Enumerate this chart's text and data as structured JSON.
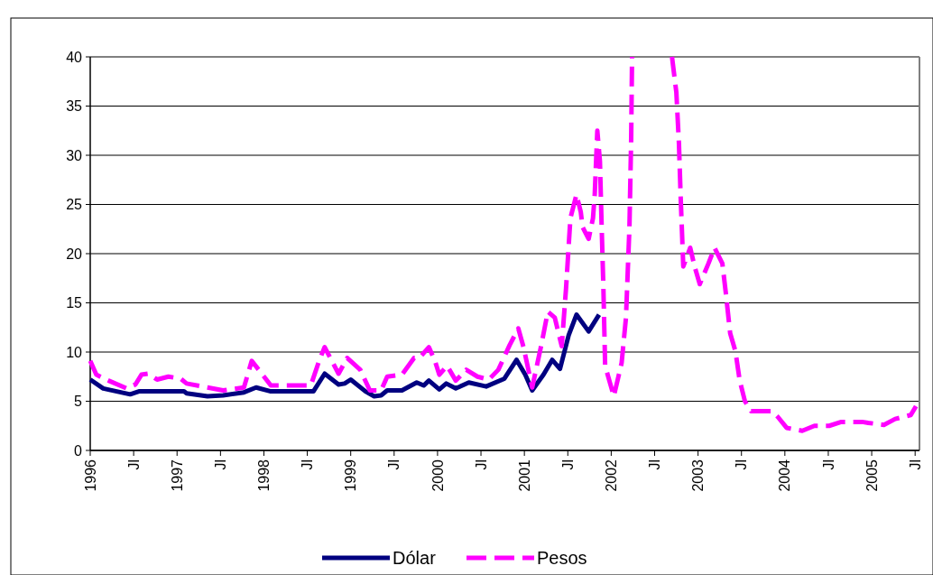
{
  "chart_data": {
    "type": "line",
    "xlim": [
      1996,
      2005.55
    ],
    "ylim": [
      0,
      40
    ],
    "yticks": [
      0,
      5,
      10,
      15,
      20,
      25,
      30,
      35,
      40
    ],
    "xticks": [
      {
        "value": 1996,
        "label": "1996"
      },
      {
        "value": 1996.5,
        "label": "Jl"
      },
      {
        "value": 1997,
        "label": "1997"
      },
      {
        "value": 1997.5,
        "label": "Jl"
      },
      {
        "value": 1998,
        "label": "1998"
      },
      {
        "value": 1998.5,
        "label": "Jl"
      },
      {
        "value": 1999,
        "label": "1999"
      },
      {
        "value": 1999.5,
        "label": "Jl"
      },
      {
        "value": 2000,
        "label": "2000"
      },
      {
        "value": 2000.5,
        "label": "Jl"
      },
      {
        "value": 2001,
        "label": "2001"
      },
      {
        "value": 2001.5,
        "label": "Jl"
      },
      {
        "value": 2002,
        "label": "2002"
      },
      {
        "value": 2002.5,
        "label": "Jl"
      },
      {
        "value": 2003,
        "label": "2003"
      },
      {
        "value": 2003.5,
        "label": "Jl"
      },
      {
        "value": 2004,
        "label": "2004"
      },
      {
        "value": 2004.5,
        "label": "Jl"
      },
      {
        "value": 2005,
        "label": "2005"
      },
      {
        "value": 2005.5,
        "label": "Jl"
      }
    ],
    "grid": "y",
    "legend": "bottom",
    "series": [
      {
        "name": "Dólar",
        "color": "#000080",
        "line_style": "solid",
        "x": [
          1996.0,
          1996.15,
          1996.46,
          1996.56,
          1997.08,
          1997.11,
          1997.35,
          1997.53,
          1997.77,
          1997.91,
          1998.08,
          1998.57,
          1998.7,
          1998.86,
          1998.93,
          1999.0,
          1999.17,
          1999.27,
          1999.35,
          1999.42,
          1999.59,
          1999.76,
          1999.84,
          1999.9,
          2000.02,
          2000.1,
          2000.21,
          2000.36,
          2000.56,
          2000.77,
          2000.91,
          2001.01,
          2001.09,
          2001.22,
          2001.32,
          2001.41,
          2001.51,
          2001.6,
          2001.74,
          2001.86
        ],
        "values": [
          7.2,
          6.3,
          5.7,
          6.0,
          6.0,
          5.8,
          5.5,
          5.6,
          5.9,
          6.4,
          6.0,
          6.0,
          7.8,
          6.7,
          6.8,
          7.2,
          6.0,
          5.5,
          5.6,
          6.1,
          6.1,
          6.9,
          6.6,
          7.1,
          6.2,
          6.8,
          6.3,
          6.9,
          6.5,
          7.3,
          9.2,
          7.7,
          6.1,
          7.7,
          9.2,
          8.3,
          11.7,
          13.8,
          12.1,
          13.8
        ]
      },
      {
        "name": "Pesos",
        "color": "#ff00ff",
        "line_style": "dashed",
        "x": [
          1996.0,
          1996.07,
          1996.21,
          1996.42,
          1996.52,
          1996.59,
          1996.67,
          1996.77,
          1996.9,
          1997.04,
          1997.11,
          1997.35,
          1997.53,
          1997.77,
          1997.86,
          1997.94,
          1998.08,
          1998.54,
          1998.64,
          1998.7,
          1998.86,
          1998.96,
          1999.11,
          1999.22,
          1999.35,
          1999.42,
          1999.59,
          1999.73,
          1999.79,
          1999.9,
          1999.97,
          2000.02,
          2000.11,
          2000.21,
          2000.33,
          2000.46,
          2000.59,
          2000.7,
          2000.83,
          2000.93,
          2000.99,
          2001.09,
          2001.19,
          2001.27,
          2001.35,
          2001.43,
          2001.48,
          2001.53,
          2001.6,
          2001.65,
          2001.67,
          2001.74,
          2001.79,
          2001.81,
          2001.84,
          2001.87,
          2001.89,
          2001.91,
          2001.93,
          2002.03,
          2002.12,
          2002.17,
          2002.21,
          2002.23,
          2002.24,
          2002.5,
          2002.7,
          2002.75,
          2002.78,
          2002.8,
          2002.83,
          2002.91,
          2002.96,
          2003.02,
          2003.12,
          2003.19,
          2003.28,
          2003.32,
          2003.37,
          2003.43,
          2003.48,
          2003.54,
          2003.61,
          2003.85,
          2003.92,
          2004.02,
          2004.2,
          2004.34,
          2004.51,
          2004.65,
          2004.89,
          2004.96,
          2005.14,
          2005.27,
          2005.45,
          2005.51
        ],
        "values": [
          9.1,
          7.7,
          7.1,
          6.3,
          6.7,
          7.7,
          7.8,
          7.2,
          7.5,
          7.3,
          6.8,
          6.4,
          6.1,
          6.4,
          9.1,
          8.2,
          6.6,
          6.6,
          9.2,
          10.5,
          7.8,
          9.4,
          8.2,
          6.1,
          6.1,
          7.5,
          7.7,
          9.4,
          9.4,
          10.5,
          9.1,
          7.7,
          8.6,
          7.1,
          8.2,
          7.5,
          7.2,
          8.2,
          10.7,
          12.4,
          10.5,
          6.4,
          10.5,
          14.1,
          13.5,
          10.6,
          16.5,
          23.6,
          26.0,
          24.2,
          22.7,
          21.5,
          23.6,
          26.0,
          32.5,
          29.4,
          22.7,
          16.5,
          8.6,
          5.5,
          8.9,
          13.5,
          22.7,
          31.8,
          40,
          null,
          40,
          36.4,
          31.2,
          25.7,
          18.7,
          20.6,
          18.7,
          16.9,
          19.0,
          20.6,
          19.0,
          16.0,
          11.9,
          10.1,
          7.1,
          5.0,
          4.0,
          4.0,
          3.4,
          2.3,
          2.0,
          2.5,
          2.5,
          2.9,
          2.9,
          2.8,
          2.6,
          3.2,
          3.6,
          4.5
        ]
      }
    ]
  }
}
